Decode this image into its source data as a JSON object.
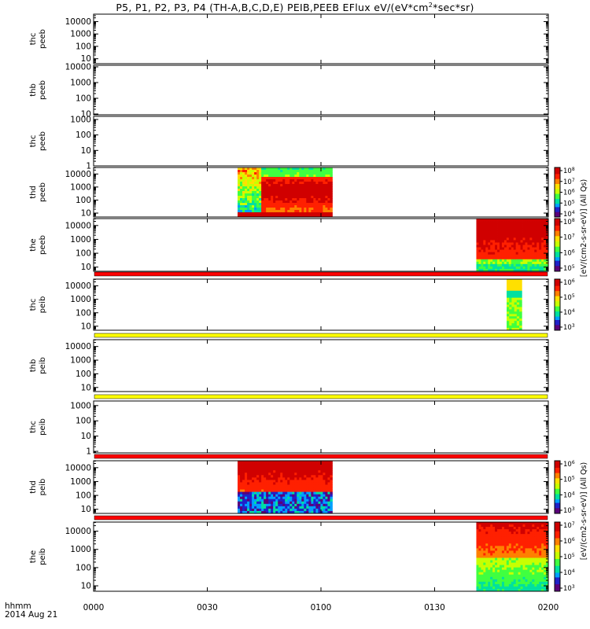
{
  "title": {
    "main": "P5, P1, P2, P3, P4 (TH-A,B,C,D,E) PEIB,PEEB EFlux eV/(eV*cm",
    "sup": "2",
    "tail": "*sec*sr)"
  },
  "time_label": "hhmm",
  "date_label": "2014 Aug 21",
  "colorbar_label_upper": "[eV/(cm2-s-sr-eV)] (All Qs)",
  "colorbar_label_lower": "[eV/(cm2-s-sr-eV)] (All Qs)",
  "chart_data": {
    "type": "heatmap",
    "x_ticks": [
      "0000",
      "0030",
      "0100",
      "0130",
      "0200"
    ],
    "xlim": [
      "0000",
      "0200"
    ],
    "colors": {
      "flag_red": "#ff0000",
      "flag_yellow": "#ffff00",
      "colormap": [
        "#5a007a",
        "#2020c8",
        "#00a0ff",
        "#00e0a0",
        "#40ff40",
        "#c8ff00",
        "#ffe000",
        "#ff8000",
        "#ff2000",
        "#d00000"
      ]
    },
    "panels": [
      {
        "probe": "thc",
        "product": "peeb",
        "yticks": [
          "10",
          "100",
          "1000",
          "10000"
        ],
        "ylog": [
          0.6,
          4.6
        ],
        "data": [],
        "colorbar": [],
        "flag": null
      },
      {
        "probe": "thb",
        "product": "peeb",
        "yticks": [
          "10",
          "100",
          "1000",
          "10000"
        ],
        "ylog": [
          0.95,
          4.1
        ],
        "data": [],
        "colorbar": [],
        "flag": null
      },
      {
        "probe": "thc",
        "product": "peeb",
        "yticks": [
          "1",
          "10",
          "100",
          "1000"
        ],
        "ylog": [
          0,
          3.2
        ],
        "data": [],
        "colorbar": [],
        "flag": null
      },
      {
        "probe": "thd",
        "product": "peeb",
        "yticks": [
          "10",
          "100",
          "1000",
          "10000"
        ],
        "ylog": [
          0.7,
          4.5
        ],
        "data": [
          {
            "start": "0038",
            "end": "0103"
          }
        ],
        "colorbar": [
          "10^4",
          "10^5",
          "10^6",
          "10^7",
          "10^8"
        ],
        "flag": null
      },
      {
        "probe": "the",
        "product": "peeb",
        "yticks": [
          "10",
          "100",
          "1000",
          "10000"
        ],
        "ylog": [
          0.7,
          4.5
        ],
        "data": [
          {
            "start": "0141",
            "end": "0200"
          }
        ],
        "colorbar": [
          "10^5",
          "10^6",
          "10^7",
          "10^8"
        ],
        "flag": "red"
      },
      {
        "probe": "thc",
        "product": "peib",
        "yticks": [
          "10",
          "100",
          "1000",
          "10000"
        ],
        "ylog": [
          0.7,
          4.5
        ],
        "data": [
          {
            "start": "0149",
            "end": "0153"
          }
        ],
        "colorbar": [
          "10^3",
          "10^4",
          "10^5",
          "10^6"
        ],
        "flag": "yellow"
      },
      {
        "probe": "thb",
        "product": "peib",
        "yticks": [
          "10",
          "100",
          "1000",
          "10000"
        ],
        "ylog": [
          0.7,
          4.5
        ],
        "data": [],
        "colorbar": [],
        "flag": "yellow"
      },
      {
        "probe": "thc",
        "product": "peib",
        "yticks": [
          "1",
          "10",
          "100",
          "1000"
        ],
        "ylog": [
          -0.1,
          3.3
        ],
        "data": [],
        "colorbar": [],
        "flag": "red"
      },
      {
        "probe": "thd",
        "product": "peib",
        "yticks": [
          "10",
          "100",
          "1000",
          "10000"
        ],
        "ylog": [
          0.7,
          4.5
        ],
        "data": [
          {
            "start": "0038",
            "end": "0103"
          }
        ],
        "colorbar": [
          "10^3",
          "10^4",
          "10^5",
          "10^6"
        ],
        "flag": "red"
      },
      {
        "probe": "the",
        "product": "peib",
        "yticks": [
          "10",
          "100",
          "1000",
          "10000"
        ],
        "ylog": [
          0.7,
          4.5
        ],
        "data": [
          {
            "start": "0141",
            "end": "0200"
          }
        ],
        "colorbar": [
          "10^3",
          "10^4",
          "10^5",
          "10^6",
          "10^7"
        ],
        "flag": null
      }
    ]
  }
}
